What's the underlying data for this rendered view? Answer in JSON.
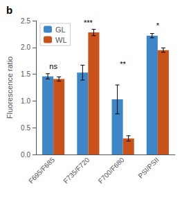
{
  "chart_data": {
    "type": "bar",
    "title": "b",
    "ylabel": "Fluorescence ratio",
    "categories": [
      "F695/F685",
      "F735/F720",
      "F700/F680",
      "PSI/PSII"
    ],
    "series": [
      {
        "name": "GL",
        "color": "#3d87c8",
        "values": [
          1.46,
          1.53,
          1.03,
          2.22
        ],
        "errors": [
          0.05,
          0.14,
          0.27,
          0.04
        ]
      },
      {
        "name": "WL",
        "color": "#c8521a",
        "values": [
          1.41,
          2.28,
          0.3,
          1.95
        ],
        "errors": [
          0.04,
          0.06,
          0.05,
          0.04
        ]
      }
    ],
    "annotations": [
      {
        "text": "ns",
        "x": "F695/F685",
        "y": 1.58
      },
      {
        "text": "***",
        "x": "F735/F720",
        "y": 2.39
      },
      {
        "text": "**",
        "x": "F700/F680",
        "y": 1.62
      },
      {
        "text": "*",
        "x": "PSI/PSII",
        "y": 2.34
      }
    ],
    "ylim": [
      0.0,
      2.5
    ],
    "yticks": [
      {
        "value": 0.0,
        "label": "0.0"
      },
      0.5,
      {
        "value": 1.0,
        "label": "1.0"
      },
      1.5,
      {
        "value": 2.0,
        "label": "2.0"
      },
      2.5
    ],
    "grid": false,
    "legend": "upper left"
  }
}
